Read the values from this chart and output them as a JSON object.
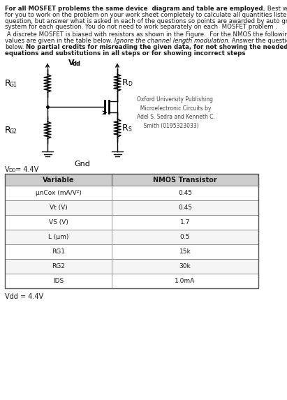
{
  "para1_bold": "For all MOSFET problems the same device  diagram and table are employed.",
  "para1_rest": " Best would be for you to work on the problem on your work sheet completely to calculate all quantities listed in this question, but answer what is asked in each of the questions so points are awarded by auto grading system for each question. You do not need to work separately on each  MOSFET problem .",
  "para2_start": " A discrete MOSFET is biased with resistors as shown in the Figure.  For the NMOS the following values are given in the table below.",
  "para2_italic": " Ignore the channel length modulation.",
  "para2_end": " Answer the questions below.",
  "para3_bold_prefix": " No partial credits for misreading the given data, for not showing the needed equations and substitutions in all steps or for showing incorrect steps",
  "oxford_text": "Oxford University Publishing\n  Microelectronic Circuits by\nAdel S. Sedra and Kenneth C.\n    Smith (0195323033)",
  "vdd_note": "V",
  "vdd_sub": "DD",
  "vdd_val": " = 4.4V",
  "vdd_bottom": "Vdd = 4.4V",
  "table_headers": [
    "Variable",
    "NMOS Transistor"
  ],
  "table_col1": [
    "μnCox (mA/V²)",
    "Vt (V)",
    "VS (V)",
    "L (μm)",
    "RG1",
    "RG2",
    "IDS"
  ],
  "table_col1_sub": [
    "",
    "",
    "s",
    "",
    "G1",
    "G2",
    "DS"
  ],
  "table_col2": [
    "0.45",
    "0.45",
    "1.7",
    "0.5",
    "15k",
    "30k",
    "1.0mA"
  ],
  "bg_color": "#ffffff",
  "text_color": "#1a1a1a",
  "table_border": "#888888",
  "table_header_bg": "#cccccc",
  "table_row_bg_odd": "#f5f5f5",
  "table_row_bg_even": "#ffffff"
}
